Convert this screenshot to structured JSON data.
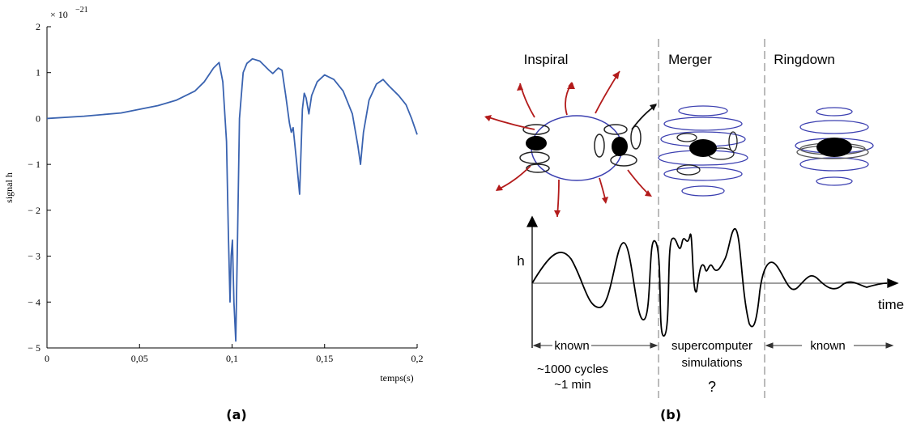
{
  "chart_data": {
    "type": "line",
    "ylabel": "signal h",
    "xlabel": "temps(s)",
    "multiplier": {
      "base": "× 10",
      "exponent": "−21"
    },
    "x": [
      0,
      0.02,
      0.04,
      0.06,
      0.07,
      0.08,
      0.085,
      0.09,
      0.093,
      0.095,
      0.097,
      0.098,
      0.0989,
      0.0995,
      0.1002,
      0.101,
      0.102,
      0.103,
      0.104,
      0.106,
      0.108,
      0.111,
      0.115,
      0.12,
      0.122,
      0.125,
      0.127,
      0.129,
      0.131,
      0.132,
      0.133,
      0.135,
      0.1365,
      0.138,
      0.139,
      0.14,
      0.1415,
      0.143,
      0.146,
      0.15,
      0.155,
      0.16,
      0.165,
      0.168,
      0.1694,
      0.171,
      0.174,
      0.178,
      0.1816,
      0.185,
      0.19,
      0.194,
      0.197,
      0.2
    ],
    "series": [
      {
        "color": "#3a63b0",
        "values": [
          0,
          0.05,
          0.12,
          0.28,
          0.4,
          0.6,
          0.8,
          1.1,
          1.22,
          0.8,
          -0.5,
          -2.5,
          -4.0,
          -3.0,
          -2.65,
          -4.0,
          -4.85,
          -2.5,
          0,
          1.0,
          1.2,
          1.3,
          1.25,
          1.05,
          0.98,
          1.1,
          1.05,
          0.5,
          -0.1,
          -0.3,
          -0.2,
          -1.0,
          -1.65,
          0.2,
          0.55,
          0.45,
          0.1,
          0.5,
          0.8,
          0.95,
          0.85,
          0.6,
          0.1,
          -0.6,
          -1.0,
          -0.3,
          0.4,
          0.75,
          0.85,
          0.7,
          0.5,
          0.3,
          0.0,
          -0.35
        ]
      }
    ],
    "xlim": [
      0,
      0.2
    ],
    "ylim": [
      -5,
      2
    ],
    "xticks": [
      0,
      {
        "value": 0.05,
        "label": "0,05"
      },
      {
        "value": 0.1,
        "label": "0,1"
      },
      {
        "value": 0.15,
        "label": "0,15"
      },
      {
        "value": 0.2,
        "label": "0,2"
      }
    ],
    "yticks": [
      {
        "value": -5,
        "label": "− 5"
      },
      {
        "value": -4,
        "label": "− 4"
      },
      {
        "value": -3,
        "label": "− 3"
      },
      {
        "value": -2,
        "label": "− 2"
      },
      {
        "value": -1,
        "label": "− 1"
      },
      0,
      1,
      2
    ]
  },
  "diagram": {
    "phases": [
      "Inspiral",
      "Merger",
      "Ringdown"
    ],
    "axis_y": "h",
    "axis_x": "time",
    "spans": [
      {
        "label": "known",
        "notes": [
          "~1000 cycles",
          "~1 min"
        ]
      },
      {
        "label": "supercomputer",
        "notes": [
          "simulations",
          "?"
        ]
      },
      {
        "label": "known"
      }
    ]
  },
  "captions": [
    "(a)",
    "(b)"
  ]
}
